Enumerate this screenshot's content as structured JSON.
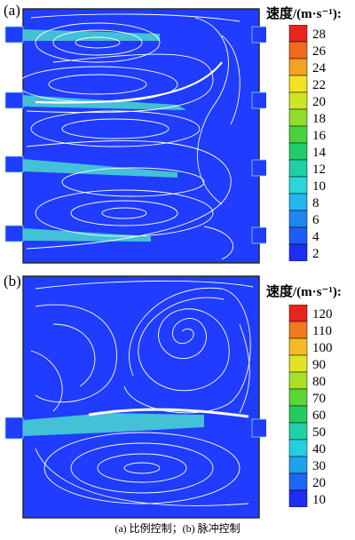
{
  "panels": [
    {
      "label": "(a)",
      "legend_title": "速度/(m·s⁻¹):",
      "ticks": [
        "28",
        "26",
        "24",
        "22",
        "20",
        "18",
        "16",
        "14",
        "12",
        "10",
        "8",
        "6",
        "4",
        "2"
      ]
    },
    {
      "label": "(b)",
      "legend_title": "速度/(m·s⁻¹):",
      "ticks": [
        "120",
        "110",
        "100",
        "90",
        "80",
        "70",
        "60",
        "50",
        "40",
        "30",
        "20",
        "10"
      ]
    }
  ],
  "caption": "(a)  比例控制；(b)  脉冲控制",
  "colors": {
    "field": "#1f3cff",
    "streamline": "#ffffff",
    "jet": "#4ad8d0",
    "frame": "#2a2a2a"
  }
}
